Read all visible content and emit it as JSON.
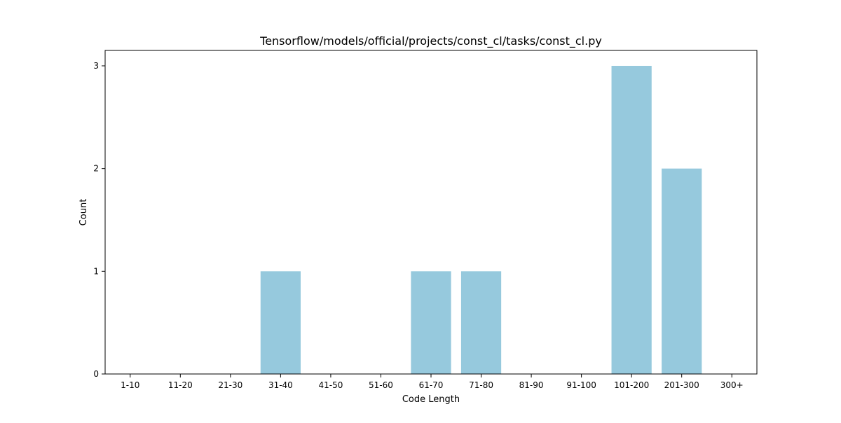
{
  "chart_data": {
    "type": "bar",
    "title": "Tensorflow/models/official/projects/const_cl/tasks/const_cl.py",
    "xlabel": "Code Length",
    "ylabel": "Count",
    "categories": [
      "1-10",
      "11-20",
      "21-30",
      "31-40",
      "41-50",
      "51-60",
      "61-70",
      "71-80",
      "81-90",
      "91-100",
      "101-200",
      "201-300",
      "300+"
    ],
    "values": [
      0,
      0,
      0,
      1,
      0,
      0,
      1,
      1,
      0,
      0,
      3,
      2,
      0
    ],
    "yticks": [
      0,
      1,
      2,
      3
    ],
    "ylim": [
      0,
      3.15
    ],
    "grid": false,
    "legend": "none",
    "bar_color": "#96c9dd"
  }
}
